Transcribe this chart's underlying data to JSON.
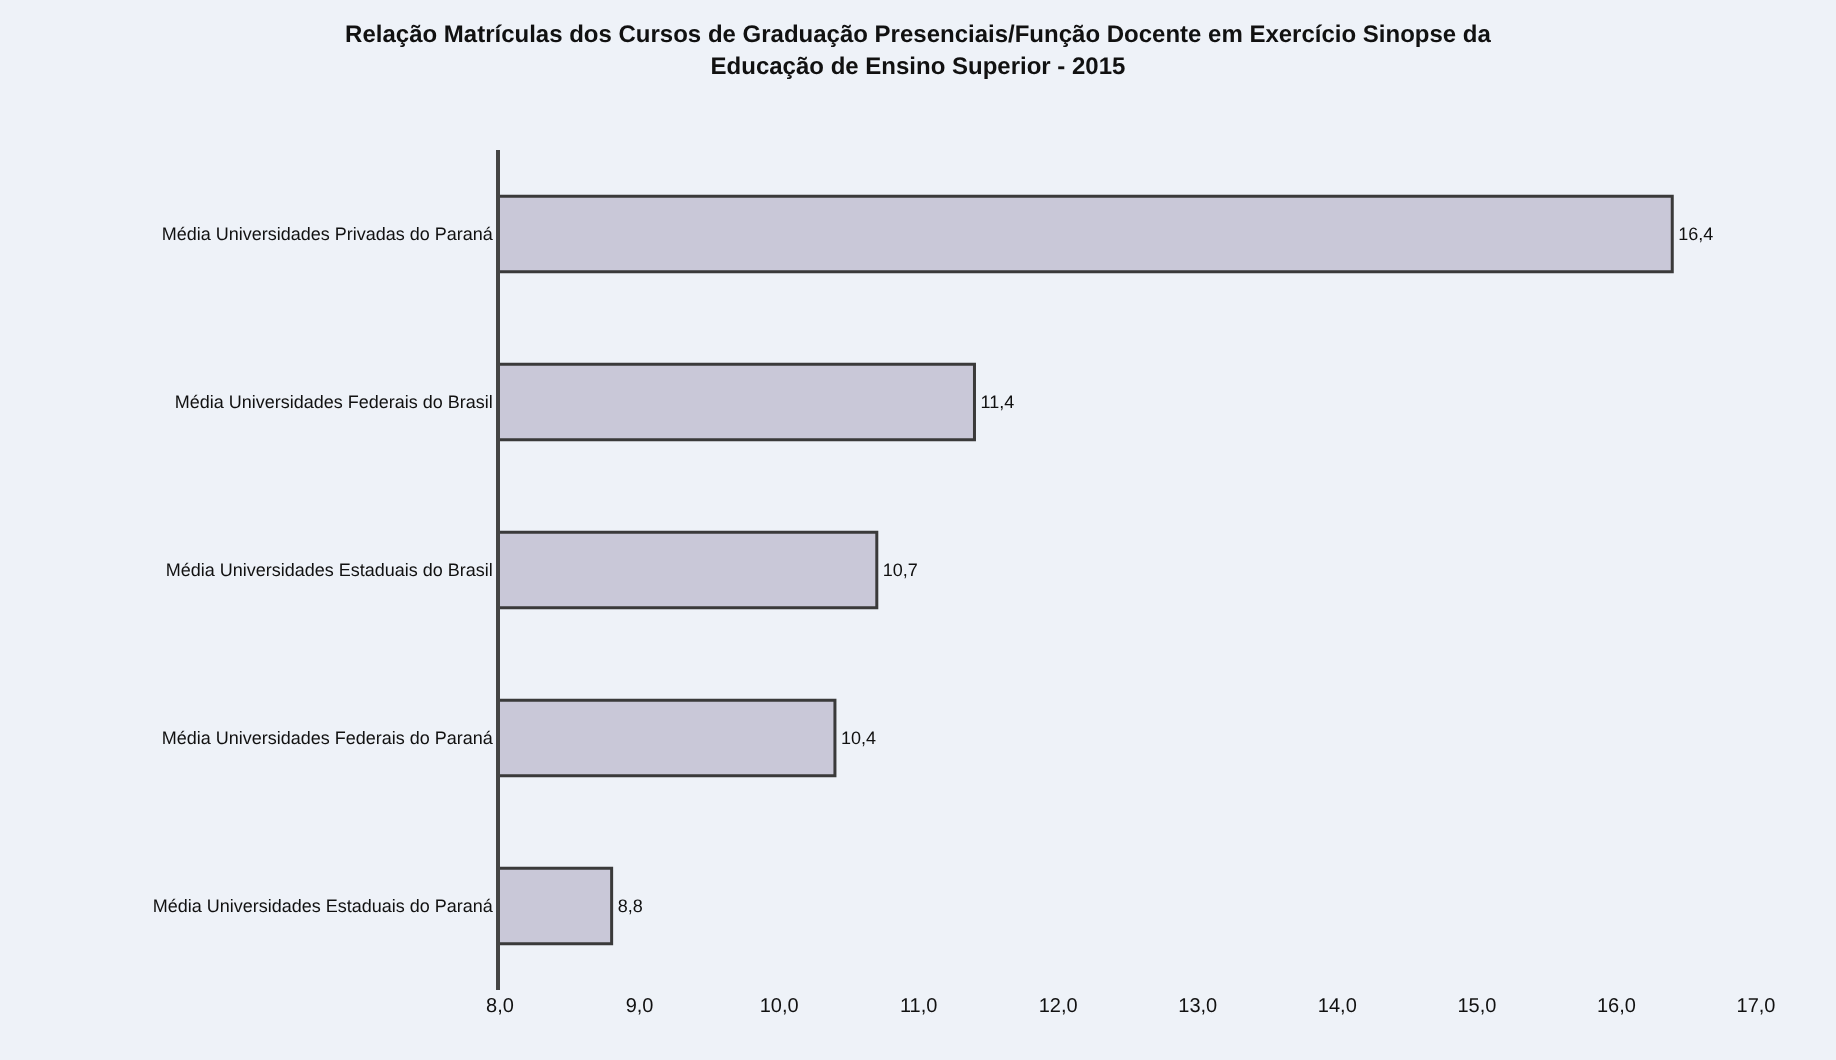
{
  "chart_data": {
    "type": "bar",
    "orientation": "horizontal",
    "title": "Relação Matrículas dos Cursos de Graduação Presenciais/Função Docente em Exercício Sinopse da Educação de Ensino Superior - 2015",
    "categories": [
      "Média Universidades Privadas do Paraná",
      "Média Universidades Federais do Brasil",
      "Média Universidades Estaduais do Brasil",
      "Média Universidades Federais do Paraná",
      "Média Universidades Estaduais do Paraná"
    ],
    "values": [
      16.4,
      11.4,
      10.7,
      10.4,
      8.8
    ],
    "value_labels": [
      "16,4",
      "11,4",
      "10,7",
      "10,4",
      "8,8"
    ],
    "color": "#c9c8d8",
    "xlim": [
      8,
      17
    ],
    "xticks": [
      {
        "value": 8,
        "label": "8,0"
      },
      {
        "value": 9,
        "label": "9,0"
      },
      {
        "value": 10,
        "label": "10,0"
      },
      {
        "value": 11,
        "label": "11,0"
      },
      {
        "value": 12,
        "label": "12,0"
      },
      {
        "value": 13,
        "label": "13,0"
      },
      {
        "value": 14,
        "label": "14,0"
      },
      {
        "value": 15,
        "label": "15,0"
      },
      {
        "value": 16,
        "label": "16,0"
      },
      {
        "value": 17,
        "label": "17,0"
      }
    ],
    "grid": false
  }
}
